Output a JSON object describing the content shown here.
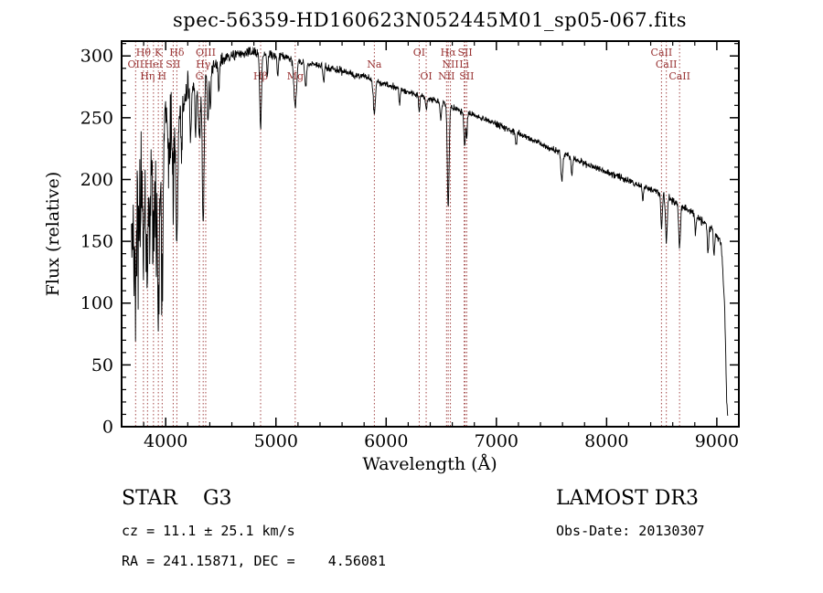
{
  "header": {
    "title": "spec-56359-HD160623N052445M01_sp05-067.fits"
  },
  "footer": {
    "classification": "STAR    G3",
    "cz": "cz = 11.1 ± 25.1 km/s",
    "radec": "RA = 241.15871, DEC =    4.56081",
    "survey": "LAMOST DR3",
    "obs_date": "Obs-Date: 20130307"
  },
  "chart_data": {
    "type": "line",
    "title": "spec-56359-HD160623N052445M01_sp05-067.fits",
    "xlabel": "Wavelength (Å)",
    "ylabel": "Flux (relative)",
    "xlim": [
      3600,
      9200
    ],
    "ylim": [
      0,
      312
    ],
    "x_major_ticks": [
      4000,
      5000,
      6000,
      7000,
      8000,
      9000
    ],
    "x_minor_step": 200,
    "y_major_ticks": [
      0,
      50,
      100,
      150,
      200,
      250,
      300
    ],
    "y_minor_step": 10,
    "grid": false,
    "legend": "none",
    "spectrum_color": "#000000",
    "line_marker_color": "#993333",
    "axis_color": "#000000",
    "noise_seed": 42,
    "sample_step": 3,
    "envelope": [
      [
        3690,
        140
      ],
      [
        3720,
        185
      ],
      [
        3760,
        205
      ],
      [
        3800,
        215
      ],
      [
        3850,
        222
      ],
      [
        3900,
        228
      ],
      [
        3950,
        233
      ],
      [
        4000,
        243
      ],
      [
        4100,
        254
      ],
      [
        4200,
        268
      ],
      [
        4300,
        281
      ],
      [
        4400,
        291
      ],
      [
        4500,
        296
      ],
      [
        4600,
        300
      ],
      [
        4700,
        302
      ],
      [
        4800,
        303
      ],
      [
        4900,
        302
      ],
      [
        5000,
        301
      ],
      [
        5100,
        299
      ],
      [
        5200,
        296
      ],
      [
        5300,
        294
      ],
      [
        5400,
        292
      ],
      [
        5500,
        290
      ],
      [
        5600,
        288
      ],
      [
        5700,
        285
      ],
      [
        5800,
        283
      ],
      [
        5900,
        280
      ],
      [
        6000,
        277
      ],
      [
        6100,
        274
      ],
      [
        6200,
        271
      ],
      [
        6300,
        268
      ],
      [
        6400,
        265
      ],
      [
        6500,
        262
      ],
      [
        6600,
        258
      ],
      [
        6700,
        255
      ],
      [
        6800,
        252
      ],
      [
        7000,
        245
      ],
      [
        7200,
        237
      ],
      [
        7400,
        229
      ],
      [
        7600,
        221
      ],
      [
        7800,
        213
      ],
      [
        8000,
        206
      ],
      [
        8200,
        199
      ],
      [
        8400,
        192
      ],
      [
        8500,
        188
      ],
      [
        8600,
        183
      ],
      [
        8700,
        178
      ],
      [
        8800,
        171
      ],
      [
        8900,
        164
      ],
      [
        9000,
        156
      ],
      [
        9040,
        148
      ],
      [
        9070,
        100
      ],
      [
        9090,
        20
      ],
      [
        9100,
        6
      ]
    ],
    "noise_envelope": [
      [
        3690,
        90
      ],
      [
        3750,
        85
      ],
      [
        3820,
        75
      ],
      [
        3900,
        62
      ],
      [
        3980,
        50
      ],
      [
        4060,
        38
      ],
      [
        4150,
        26
      ],
      [
        4250,
        16
      ],
      [
        4350,
        11
      ],
      [
        4500,
        8
      ],
      [
        4700,
        6
      ],
      [
        5000,
        5
      ],
      [
        5500,
        4.5
      ],
      [
        6000,
        4
      ],
      [
        6500,
        4
      ],
      [
        7000,
        4
      ],
      [
        7500,
        4
      ],
      [
        8000,
        4
      ],
      [
        8500,
        4.5
      ],
      [
        9000,
        5
      ],
      [
        9100,
        3
      ]
    ],
    "absorption_dips": [
      [
        3727,
        7,
        70
      ],
      [
        3752,
        6,
        50
      ],
      [
        3770,
        6,
        55
      ],
      [
        3798,
        7,
        78
      ],
      [
        3820,
        6,
        50
      ],
      [
        3835,
        7,
        88
      ],
      [
        3860,
        6,
        60
      ],
      [
        3889,
        8,
        98
      ],
      [
        3912,
        6,
        55
      ],
      [
        3933,
        9,
        132
      ],
      [
        3968,
        9,
        122
      ],
      [
        4026,
        6,
        40
      ],
      [
        4068,
        7,
        55
      ],
      [
        4101,
        9,
        102
      ],
      [
        4144,
        6,
        35
      ],
      [
        4227,
        6,
        40
      ],
      [
        4271,
        6,
        35
      ],
      [
        4305,
        10,
        50
      ],
      [
        4340,
        8,
        126
      ],
      [
        4383,
        6,
        45
      ],
      [
        4405,
        6,
        35
      ],
      [
        4481,
        6,
        25
      ],
      [
        4861,
        8,
        60
      ],
      [
        4922,
        6,
        18
      ],
      [
        5016,
        6,
        18
      ],
      [
        5175,
        12,
        38
      ],
      [
        5270,
        8,
        20
      ],
      [
        5432,
        6,
        12
      ],
      [
        5893,
        9,
        28
      ],
      [
        6122,
        6,
        12
      ],
      [
        6300,
        6,
        12
      ],
      [
        6363,
        6,
        10
      ],
      [
        6495,
        6,
        14
      ],
      [
        6563,
        8,
        82
      ],
      [
        6708,
        5,
        18
      ],
      [
        6716,
        5,
        20
      ],
      [
        6731,
        5,
        20
      ],
      [
        7180,
        6,
        10
      ],
      [
        7594,
        8,
        22
      ],
      [
        7685,
        6,
        15
      ],
      [
        8327,
        5,
        12
      ],
      [
        8498,
        7,
        28
      ],
      [
        8542,
        8,
        35
      ],
      [
        8662,
        8,
        35
      ],
      [
        8806,
        5,
        15
      ],
      [
        8920,
        6,
        22
      ],
      [
        8975,
        6,
        18
      ]
    ],
    "spectral_lines": [
      {
        "label": "OII",
        "wavelength": 3727,
        "row": 1
      },
      {
        "label": "Hθ",
        "wavelength": 3798,
        "row": 0
      },
      {
        "label": "Hη",
        "wavelength": 3835,
        "row": 2
      },
      {
        "label": "HeI",
        "wavelength": 3889,
        "row": 1
      },
      {
        "label": "K",
        "wavelength": 3933,
        "row": 0
      },
      {
        "label": "H",
        "wavelength": 3968,
        "row": 2
      },
      {
        "label": "SII",
        "wavelength": 4068,
        "row": 1
      },
      {
        "label": "Hδ",
        "wavelength": 4101,
        "row": 0
      },
      {
        "label": "G",
        "wavelength": 4305,
        "row": 2
      },
      {
        "label": "Hγ",
        "wavelength": 4340,
        "row": 1
      },
      {
        "label": "OIII",
        "wavelength": 4363,
        "row": 0
      },
      {
        "label": "Hβ",
        "wavelength": 4861,
        "row": 2
      },
      {
        "label": "Mg",
        "wavelength": 5175,
        "row": 2
      },
      {
        "label": "Na",
        "wavelength": 5893,
        "row": 1
      },
      {
        "label": "OI",
        "wavelength": 6300,
        "row": 0
      },
      {
        "label": "OI",
        "wavelength": 6363,
        "row": 2
      },
      {
        "label": "NII",
        "wavelength": 6548,
        "row": 2
      },
      {
        "label": "Hα",
        "wavelength": 6563,
        "row": 0
      },
      {
        "label": "NII",
        "wavelength": 6583,
        "row": 1
      },
      {
        "label": "Li",
        "wavelength": 6708,
        "row": 1
      },
      {
        "label": "SII",
        "wavelength": 6716,
        "row": 0
      },
      {
        "label": "SII",
        "wavelength": 6731,
        "row": 2
      },
      {
        "label": "CaII",
        "wavelength": 8498,
        "row": 0
      },
      {
        "label": "CaII",
        "wavelength": 8542,
        "row": 1
      },
      {
        "label": "CaII",
        "wavelength": 8662,
        "row": 2
      }
    ]
  }
}
